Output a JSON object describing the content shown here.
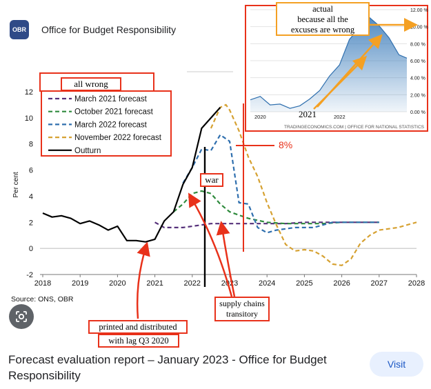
{
  "source": {
    "logo_text": "OBR",
    "name": "Office for Budget Responsibility"
  },
  "result": {
    "title": "Forecast evaluation report – January 2023 - Office for Budget Responsibility",
    "visit_label": "Visit"
  },
  "annotations": {
    "all_wrong": "all wrong",
    "war": "war",
    "eight_percent": "8%",
    "supply_chains": "supply chains transitory",
    "printed": "printed and distributed",
    "with_lag": "with lag Q3 2020",
    "actual": "actual",
    "because": "because all the",
    "excuses": "excuses are wrong",
    "inset_2021": "2021"
  },
  "colors": {
    "red": "#e8311a",
    "orange": "#f4a023",
    "march2021": "#55307a",
    "october2021": "#2e8a3c",
    "march2022": "#2f6fae",
    "november2022": "#d6a131",
    "outturn": "#000000",
    "inset_fill": "#4a86c0"
  },
  "chart_data": [
    {
      "type": "line",
      "source_note": "Source: ONS, OBR",
      "ylabel": "Per cent",
      "xlim": [
        2018,
        2028
      ],
      "ylim": [
        -2,
        12
      ],
      "x_ticks": [
        "2018",
        "2019",
        "2020",
        "2021",
        "2022",
        "2023",
        "2024",
        "2025",
        "2026",
        "2027",
        "2028"
      ],
      "y_ticks": [
        "-2",
        "0",
        "2",
        "4",
        "6",
        "8",
        "10",
        "12"
      ],
      "legend_position": "top-left",
      "series": [
        {
          "name": "March 2021 forecast",
          "style": "dashed",
          "color_key": "march2021",
          "points": [
            [
              2021.0,
              2.0
            ],
            [
              2021.25,
              1.6
            ],
            [
              2021.5,
              1.6
            ],
            [
              2021.75,
              1.6
            ],
            [
              2022.0,
              1.7
            ],
            [
              2022.25,
              1.8
            ],
            [
              2022.5,
              1.9
            ],
            [
              2023.0,
              1.9
            ],
            [
              2023.5,
              1.9
            ],
            [
              2024.0,
              1.9
            ],
            [
              2024.5,
              1.9
            ],
            [
              2025.0,
              2.0
            ],
            [
              2027.0,
              2.0
            ]
          ]
        },
        {
          "name": "October 2021 forecast",
          "style": "dashed",
          "color_key": "october2021",
          "points": [
            [
              2021.5,
              2.8
            ],
            [
              2021.75,
              3.4
            ],
            [
              2022.0,
              4.2
            ],
            [
              2022.25,
              4.4
            ],
            [
              2022.5,
              4.2
            ],
            [
              2022.75,
              3.4
            ],
            [
              2023.0,
              2.8
            ],
            [
              2023.5,
              2.3
            ],
            [
              2024.0,
              2.0
            ],
            [
              2024.5,
              1.9
            ],
            [
              2025.0,
              1.9
            ],
            [
              2025.5,
              1.9
            ],
            [
              2026.0,
              2.0
            ],
            [
              2027.0,
              2.0
            ]
          ]
        },
        {
          "name": "March 2022 forecast",
          "style": "dashed",
          "color_key": "march2022",
          "points": [
            [
              2021.75,
              5.0
            ],
            [
              2022.0,
              6.2
            ],
            [
              2022.25,
              7.6
            ],
            [
              2022.5,
              7.5
            ],
            [
              2022.75,
              8.7
            ],
            [
              2023.0,
              8.2
            ],
            [
              2023.25,
              3.5
            ],
            [
              2023.5,
              3.4
            ],
            [
              2023.75,
              1.6
            ],
            [
              2024.0,
              1.2
            ],
            [
              2024.25,
              1.4
            ],
            [
              2024.75,
              1.6
            ],
            [
              2025.25,
              1.6
            ],
            [
              2025.75,
              2.0
            ],
            [
              2027.0,
              2.0
            ]
          ]
        },
        {
          "name": "November 2022 forecast",
          "style": "dashed",
          "color_key": "november2022",
          "points": [
            [
              2022.5,
              9.2
            ],
            [
              2022.75,
              10.8
            ],
            [
              2022.9,
              11.0
            ],
            [
              2023.0,
              10.6
            ],
            [
              2023.25,
              9.0
            ],
            [
              2023.5,
              7.0
            ],
            [
              2023.75,
              5.5
            ],
            [
              2024.0,
              3.5
            ],
            [
              2024.25,
              1.8
            ],
            [
              2024.5,
              0.3
            ],
            [
              2024.75,
              -0.2
            ],
            [
              2025.0,
              -0.1
            ],
            [
              2025.25,
              -0.2
            ],
            [
              2025.5,
              -0.6
            ],
            [
              2025.75,
              -1.2
            ],
            [
              2026.0,
              -1.3
            ],
            [
              2026.25,
              -0.8
            ],
            [
              2026.5,
              0.4
            ],
            [
              2026.75,
              1.0
            ],
            [
              2027.0,
              1.4
            ],
            [
              2027.5,
              1.6
            ],
            [
              2028.0,
              2.0
            ]
          ]
        },
        {
          "name": "Outturn",
          "style": "solid",
          "color_key": "outturn",
          "points": [
            [
              2018.0,
              2.7
            ],
            [
              2018.25,
              2.4
            ],
            [
              2018.5,
              2.5
            ],
            [
              2018.75,
              2.3
            ],
            [
              2019.0,
              1.9
            ],
            [
              2019.25,
              2.1
            ],
            [
              2019.5,
              1.8
            ],
            [
              2019.75,
              1.4
            ],
            [
              2020.0,
              1.7
            ],
            [
              2020.25,
              0.6
            ],
            [
              2020.5,
              0.6
            ],
            [
              2020.75,
              0.5
            ],
            [
              2021.0,
              0.7
            ],
            [
              2021.25,
              2.1
            ],
            [
              2021.5,
              2.8
            ],
            [
              2021.75,
              4.9
            ],
            [
              2022.0,
              6.2
            ],
            [
              2022.25,
              9.2
            ],
            [
              2022.5,
              10.0
            ],
            [
              2022.75,
              10.8
            ]
          ]
        }
      ]
    },
    {
      "type": "area",
      "source_note": "TRADINGECONOMICS.COM | OFFICE FOR NATIONAL STATISTICS",
      "xlim": [
        2019.75,
        2023.7
      ],
      "ylim": [
        0,
        12
      ],
      "x_ticks": [
        "2020",
        "2022"
      ],
      "y_ticks": [
        "0.00 %",
        "2.00 %",
        "4.00 %",
        "6.00 %",
        "8.00 %",
        "10.00 %",
        "12.00 %"
      ],
      "series": [
        {
          "name": "",
          "points": [
            [
              2019.75,
              1.4
            ],
            [
              2020.0,
              1.8
            ],
            [
              2020.25,
              0.8
            ],
            [
              2020.5,
              0.9
            ],
            [
              2020.75,
              0.4
            ],
            [
              2021.0,
              0.7
            ],
            [
              2021.25,
              1.5
            ],
            [
              2021.5,
              2.5
            ],
            [
              2021.75,
              4.2
            ],
            [
              2022.0,
              5.5
            ],
            [
              2022.25,
              8.5
            ],
            [
              2022.5,
              9.9
            ],
            [
              2022.75,
              11.1
            ],
            [
              2023.0,
              10.1
            ],
            [
              2023.25,
              8.7
            ],
            [
              2023.5,
              6.7
            ],
            [
              2023.7,
              6.3
            ]
          ]
        }
      ]
    }
  ]
}
